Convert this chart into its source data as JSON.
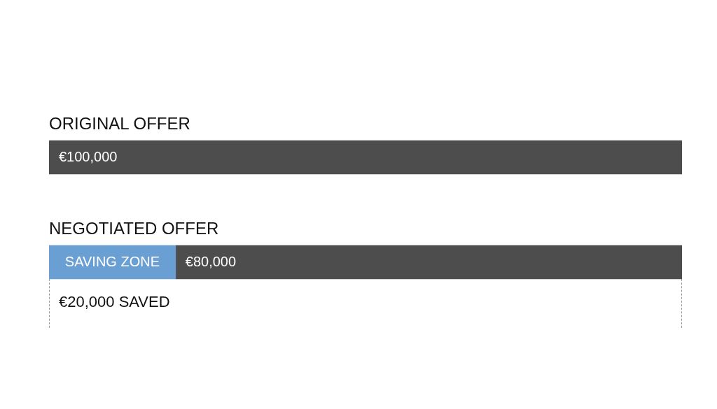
{
  "chart_data": {
    "type": "bar",
    "orientation": "horizontal",
    "stacked": true,
    "tick_labels": "y",
    "categories": [
      "ORIGINAL OFFER",
      "NEGOTIATED OFFER"
    ],
    "series": [
      {
        "name": "SAVING ZONE",
        "color": "#6a9fd4",
        "values": [
          null,
          20000
        ],
        "value_labels": [
          null,
          "€20,000 SAVED"
        ]
      },
      {
        "color": "#4d4d4d",
        "values": [
          100000,
          80000
        ],
        "value_labels": [
          "€100,000",
          "€80,000"
        ]
      }
    ]
  }
}
